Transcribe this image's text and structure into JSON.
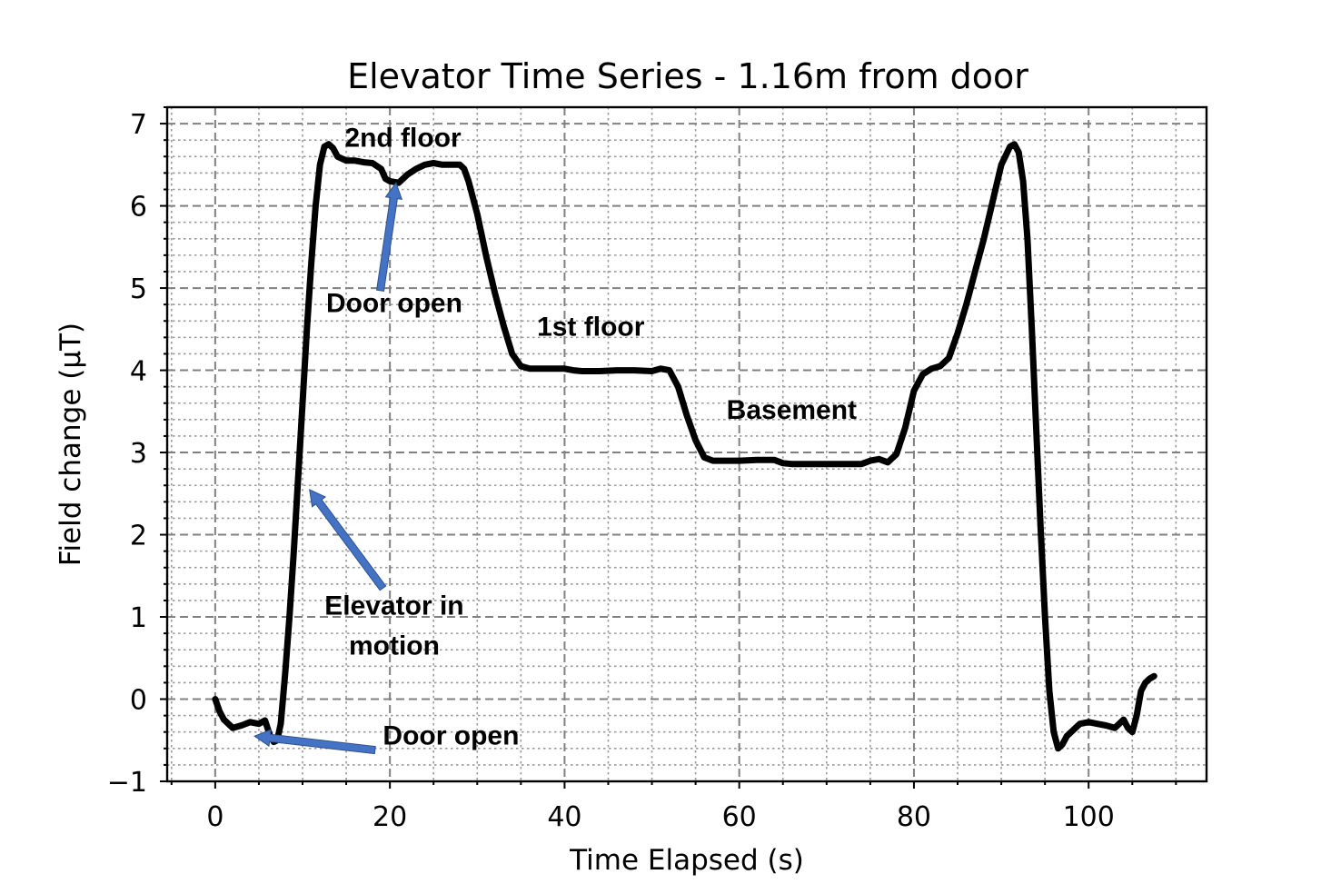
{
  "chart_data": {
    "type": "line",
    "title": "Elevator Time Series - 1.16m from door",
    "xlabel": "Time Elapsed (s)",
    "ylabel": "Field change (μT)",
    "xlim": [
      -5.5,
      113.5
    ],
    "ylim": [
      -1,
      7.2
    ],
    "xticks": [
      0,
      20,
      40,
      60,
      80,
      100
    ],
    "xtick_labels": [
      "0",
      "20",
      "40",
      "60",
      "80",
      "100"
    ],
    "yticks": [
      -1,
      0,
      1,
      2,
      3,
      4,
      5,
      6,
      7
    ],
    "ytick_labels": [
      "−1",
      "0",
      "1",
      "2",
      "3",
      "4",
      "5",
      "6",
      "7"
    ],
    "x_minor_step": 5,
    "y_minor_step": 0.2,
    "grid": true,
    "line_color": "#000000",
    "arrow_color": "#4472c4",
    "series": [
      {
        "x": [
          0,
          0.5,
          1,
          2,
          3,
          4,
          5,
          5.7,
          6.3,
          6.7,
          7.1,
          7.5,
          8,
          8.5,
          9,
          9.5,
          10,
          10.5,
          11,
          11.5,
          12,
          12.5,
          13,
          13.5,
          14,
          15,
          16,
          17,
          18,
          19,
          19.5,
          20,
          21,
          22,
          23,
          24,
          25,
          26,
          27,
          28,
          28.5,
          29,
          30,
          31,
          32,
          33,
          34,
          35,
          36,
          38,
          40,
          41,
          42,
          44,
          46,
          48,
          50,
          51,
          52,
          53,
          54,
          55,
          56,
          57,
          58,
          60,
          62,
          64,
          65,
          66,
          68,
          70,
          72,
          74,
          75,
          76,
          77,
          78,
          79,
          80,
          81,
          82,
          83,
          84,
          85,
          86,
          87,
          88,
          89,
          90,
          91,
          91.5,
          92,
          92.5,
          93,
          93.5,
          94,
          94.5,
          95,
          95.5,
          96,
          96.5,
          97,
          97.5,
          98,
          98.5,
          99,
          100,
          101,
          102,
          103,
          104,
          104.5,
          105,
          105.5,
          106,
          106.5,
          107,
          107.5
        ],
        "y": [
          0.0,
          -0.15,
          -0.25,
          -0.35,
          -0.32,
          -0.28,
          -0.3,
          -0.26,
          -0.45,
          -0.52,
          -0.5,
          -0.3,
          0.3,
          1.0,
          1.8,
          2.7,
          3.6,
          4.5,
          5.3,
          6.0,
          6.5,
          6.72,
          6.75,
          6.7,
          6.6,
          6.55,
          6.55,
          6.53,
          6.52,
          6.45,
          6.33,
          6.3,
          6.28,
          6.38,
          6.45,
          6.5,
          6.52,
          6.5,
          6.5,
          6.5,
          6.45,
          6.3,
          5.9,
          5.4,
          4.95,
          4.55,
          4.2,
          4.05,
          4.02,
          4.02,
          4.02,
          4.0,
          3.99,
          3.99,
          4.0,
          4.0,
          3.99,
          4.02,
          4.0,
          3.8,
          3.45,
          3.15,
          2.94,
          2.9,
          2.9,
          2.9,
          2.91,
          2.91,
          2.87,
          2.86,
          2.86,
          2.86,
          2.86,
          2.86,
          2.9,
          2.92,
          2.88,
          2.98,
          3.3,
          3.75,
          3.95,
          4.02,
          4.05,
          4.15,
          4.45,
          4.8,
          5.2,
          5.6,
          6.05,
          6.5,
          6.72,
          6.75,
          6.65,
          6.3,
          5.6,
          4.5,
          3.3,
          2.1,
          1.0,
          0.1,
          -0.4,
          -0.6,
          -0.55,
          -0.45,
          -0.4,
          -0.35,
          -0.3,
          -0.28,
          -0.3,
          -0.32,
          -0.35,
          -0.25,
          -0.35,
          -0.4,
          -0.2,
          0.1,
          0.2,
          0.25,
          0.28
        ]
      }
    ],
    "annotations": [
      {
        "text": "2nd floor",
        "x": 21.5,
        "y": 6.72,
        "arrow": false
      },
      {
        "text": "Door open",
        "x": 20.5,
        "y": 4.71,
        "arrow": true,
        "arrow_from": [
          18.9,
          4.97
        ],
        "arrow_to": [
          20.7,
          6.28
        ]
      },
      {
        "text": "1st floor",
        "x": 43.0,
        "y": 4.42,
        "arrow": false
      },
      {
        "text": "Basement",
        "x": 66.0,
        "y": 3.41,
        "arrow": false
      },
      {
        "text": [
          "Elevator in",
          "motion"
        ],
        "x": 20.5,
        "y": 1.03,
        "arrow": true,
        "arrow_from": [
          19.2,
          1.35
        ],
        "arrow_to": [
          10.8,
          2.55
        ]
      },
      {
        "text": "Door open",
        "x": 27.0,
        "y": -0.55,
        "arrow": true,
        "arrow_from": [
          18.3,
          -0.62
        ],
        "arrow_to": [
          4.5,
          -0.45
        ]
      }
    ]
  }
}
